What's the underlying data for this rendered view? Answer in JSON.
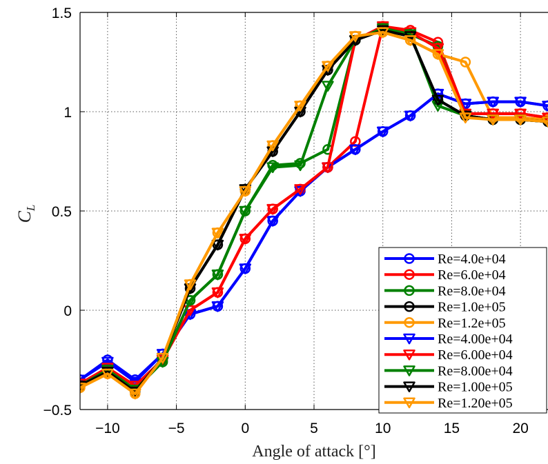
{
  "chart_data": {
    "type": "line",
    "xlabel": "Angle of attack [°]",
    "ylabel_main": "C",
    "ylabel_sub": "L",
    "xlim": [
      -12,
      22
    ],
    "ylim": [
      -0.5,
      1.5
    ],
    "xticks": [
      -10,
      -5,
      0,
      5,
      10,
      15,
      20
    ],
    "yticks": [
      -0.5,
      0,
      0.5,
      1,
      1.5
    ],
    "xtick_labels": [
      "−10",
      "−5",
      "0",
      "5",
      "10",
      "15",
      "20"
    ],
    "ytick_labels": [
      "−0.5",
      "0",
      "0.5",
      "1",
      "1.5"
    ],
    "grid": "dotted",
    "legend_position": "bottom-right",
    "series": [
      {
        "name": "Re=4.0e+04",
        "color": "#0000ff",
        "marker": "circle",
        "x": [
          -12,
          -10,
          -8,
          -6,
          -4,
          -2,
          0,
          2,
          4,
          6,
          8,
          10,
          12,
          14,
          16,
          18,
          20,
          22
        ],
        "y": [
          -0.35,
          -0.25,
          -0.35,
          -0.22,
          -0.02,
          0.02,
          0.21,
          0.45,
          0.6,
          0.72,
          0.81,
          0.9,
          0.98,
          1.09,
          1.04,
          1.05,
          1.05,
          1.03
        ]
      },
      {
        "name": "Re=6.0e+04",
        "color": "#ff0000",
        "marker": "circle",
        "x": [
          -12,
          -10,
          -8,
          -6,
          -4,
          -2,
          0,
          2,
          4,
          6,
          8,
          10,
          12,
          14,
          16,
          18,
          20,
          22
        ],
        "y": [
          -0.37,
          -0.29,
          -0.38,
          -0.25,
          0.0,
          0.09,
          0.36,
          0.51,
          0.61,
          0.72,
          0.85,
          1.43,
          1.41,
          1.35,
          0.99,
          0.99,
          0.99,
          0.97
        ]
      },
      {
        "name": "Re=8.0e+04",
        "color": "#008000",
        "marker": "circle",
        "x": [
          -12,
          -10,
          -8,
          -6,
          -4,
          -2,
          0,
          2,
          4,
          6,
          8,
          10,
          12,
          14,
          16,
          18,
          20,
          22
        ],
        "y": [
          -0.38,
          -0.3,
          -0.4,
          -0.26,
          0.05,
          0.18,
          0.5,
          0.73,
          0.74,
          0.81,
          1.36,
          1.42,
          1.39,
          1.33,
          0.98,
          0.96,
          0.96,
          0.95
        ]
      },
      {
        "name": "Re=1.0e+05",
        "color": "#000000",
        "marker": "circle",
        "x": [
          -12,
          -10,
          -8,
          -6,
          -4,
          -2,
          0,
          2,
          4,
          6,
          8,
          10,
          12,
          14,
          16,
          18,
          20,
          22
        ],
        "y": [
          -0.38,
          -0.31,
          -0.41,
          -0.24,
          0.11,
          0.33,
          0.61,
          0.8,
          1.0,
          1.21,
          1.36,
          1.41,
          1.38,
          1.06,
          0.98,
          0.96,
          0.96,
          0.95
        ]
      },
      {
        "name": "Re=1.2e+05",
        "color": "#ff9900",
        "marker": "circle",
        "x": [
          -12,
          -10,
          -8,
          -6,
          -4,
          -2,
          0,
          2,
          4,
          6,
          8,
          10,
          12,
          14,
          16,
          18,
          20,
          22
        ],
        "y": [
          -0.39,
          -0.32,
          -0.42,
          -0.24,
          0.13,
          0.39,
          0.6,
          0.83,
          1.03,
          1.23,
          1.38,
          1.4,
          1.36,
          1.29,
          1.25,
          0.97,
          0.97,
          0.96
        ]
      },
      {
        "name": "Re=4.00e+04",
        "color": "#0000ff",
        "marker": "triangle-down",
        "x": [
          -12,
          -10,
          -8,
          -6,
          -4,
          -2,
          0,
          2,
          4,
          6,
          8,
          10,
          12,
          14,
          16,
          18,
          20,
          22
        ],
        "y": [
          -0.35,
          -0.26,
          -0.36,
          -0.22,
          -0.02,
          0.02,
          0.21,
          0.45,
          0.6,
          0.72,
          0.81,
          0.9,
          0.98,
          1.09,
          1.04,
          1.05,
          1.05,
          1.03
        ]
      },
      {
        "name": "Re=6.00e+04",
        "color": "#ff0000",
        "marker": "triangle-down",
        "x": [
          -12,
          -10,
          -8,
          -6,
          -4,
          -2,
          0,
          2,
          4,
          6,
          8,
          10,
          12,
          14,
          16,
          18,
          20,
          22
        ],
        "y": [
          -0.37,
          -0.29,
          -0.38,
          -0.25,
          0.0,
          0.09,
          0.36,
          0.51,
          0.61,
          0.72,
          1.36,
          1.43,
          1.4,
          1.32,
          0.99,
          0.99,
          0.99,
          0.97
        ]
      },
      {
        "name": "Re=8.00e+04",
        "color": "#008000",
        "marker": "triangle-down",
        "x": [
          -12,
          -10,
          -8,
          -6,
          -4,
          -2,
          0,
          2,
          4,
          6,
          8,
          10,
          12,
          14,
          16,
          18,
          20,
          22
        ],
        "y": [
          -0.38,
          -0.3,
          -0.4,
          -0.26,
          0.05,
          0.18,
          0.5,
          0.72,
          0.73,
          1.13,
          1.36,
          1.42,
          1.39,
          1.03,
          0.98,
          0.96,
          0.96,
          0.95
        ]
      },
      {
        "name": "Re=1.00e+05",
        "color": "#000000",
        "marker": "triangle-down",
        "x": [
          -12,
          -10,
          -8,
          -6,
          -4,
          -2,
          0,
          2,
          4,
          6,
          8,
          10,
          12,
          14,
          16,
          18,
          20,
          22
        ],
        "y": [
          -0.38,
          -0.31,
          -0.41,
          -0.24,
          0.11,
          0.33,
          0.61,
          0.8,
          1.0,
          1.21,
          1.36,
          1.41,
          1.38,
          1.06,
          0.98,
          0.96,
          0.96,
          0.95
        ]
      },
      {
        "name": "Re=1.20e+05",
        "color": "#ff9900",
        "marker": "triangle-down",
        "x": [
          -12,
          -10,
          -8,
          -6,
          -4,
          -2,
          0,
          2,
          4,
          6,
          8,
          10,
          12,
          14,
          16,
          18,
          20,
          22
        ],
        "y": [
          -0.39,
          -0.32,
          -0.42,
          -0.24,
          0.13,
          0.39,
          0.6,
          0.83,
          1.03,
          1.23,
          1.38,
          1.4,
          1.36,
          1.29,
          0.97,
          0.96,
          0.96,
          0.95
        ]
      }
    ]
  }
}
